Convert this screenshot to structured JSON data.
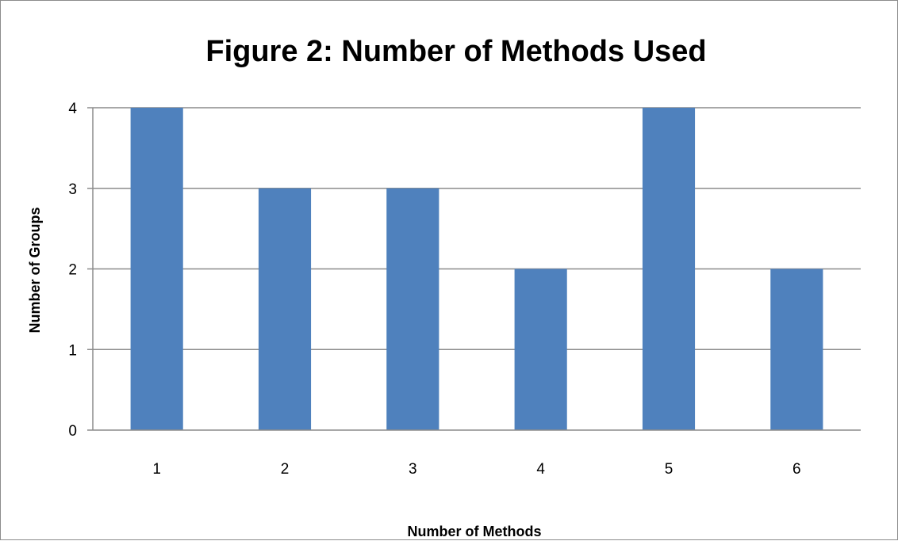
{
  "chart_data": {
    "type": "bar",
    "title": "Figure 2: Number of Methods Used",
    "xlabel": "Number of Methods",
    "ylabel": "Number of Groups",
    "categories": [
      "1",
      "2",
      "3",
      "4",
      "5",
      "6"
    ],
    "values": [
      4,
      3,
      3,
      2,
      4,
      2
    ],
    "ylim": [
      0,
      4
    ],
    "yticks": [
      "0",
      "1",
      "2",
      "3",
      "4"
    ],
    "grid": true,
    "legend": "none",
    "bar_color": "#4f81bd",
    "grid_color": "#8c8c8c"
  }
}
